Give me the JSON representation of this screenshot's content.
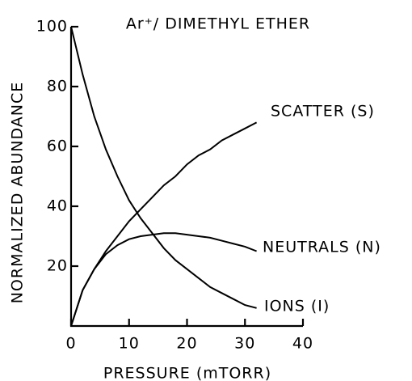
{
  "chart_data": {
    "type": "line",
    "title": "Ar⁺/ DIMETHYL  ETHER",
    "xlabel": "PRESSURE   (mTORR)",
    "ylabel": "NORMALIZED   ABUNDANCE",
    "x": [
      0,
      2,
      4,
      6,
      8,
      10,
      12,
      14,
      16,
      18,
      20,
      22,
      24,
      26,
      28,
      30,
      32
    ],
    "series": [
      {
        "name": "SCATTER   (S)",
        "color": "#000000",
        "values": [
          0,
          12,
          19,
          25,
          30,
          35,
          39,
          43,
          47,
          50,
          54,
          57,
          59,
          62,
          64,
          66,
          68
        ]
      },
      {
        "name": "NEUTRALS   (N)",
        "color": "#000000",
        "values": [
          0,
          12,
          19,
          24,
          27,
          29,
          30,
          30.5,
          31,
          31,
          30.5,
          30,
          29.5,
          28.5,
          27.5,
          26.5,
          25
        ]
      },
      {
        "name": "IONS  (I)",
        "color": "#000000",
        "values": [
          100,
          84,
          70,
          59,
          50,
          42,
          36,
          31,
          26,
          22,
          19,
          16,
          13,
          11,
          9,
          7,
          6
        ]
      }
    ],
    "xlim": [
      0,
      40
    ],
    "xticks": [
      0,
      10,
      20,
      30,
      40
    ],
    "ylim": [
      0,
      100
    ],
    "yticks": [
      20,
      40,
      60,
      80,
      100
    ]
  }
}
